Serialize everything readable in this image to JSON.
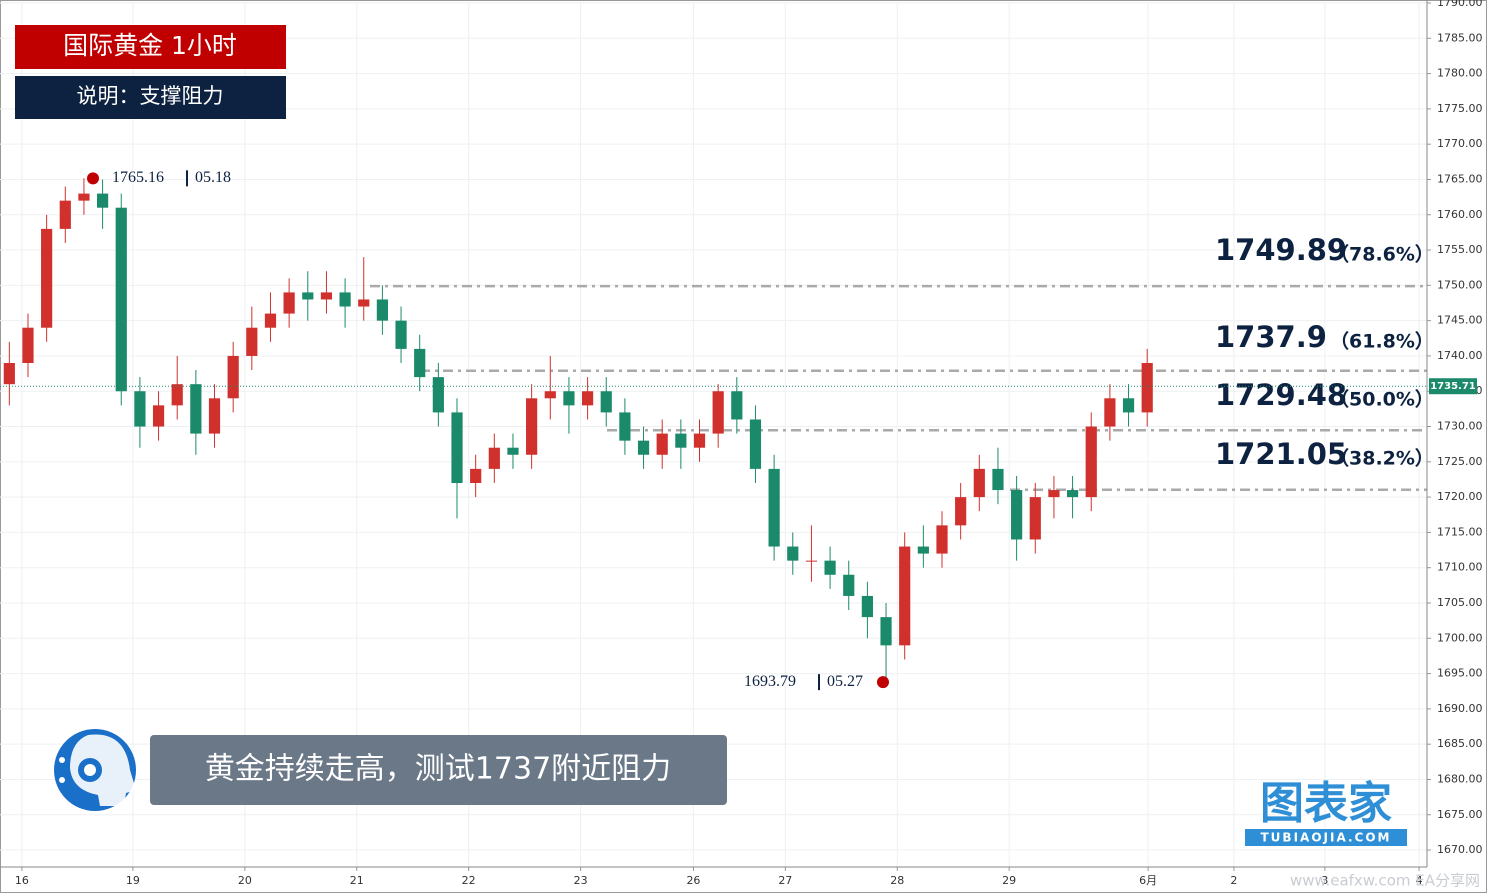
{
  "chart_data": {
    "type": "candlestick",
    "title": "国际黄金  1小时",
    "subtitle": "说明：支撑阻力",
    "caption": "黄金持续走高，测试1737附近阻力",
    "logo": {
      "text": "图表家",
      "url": "TUBIAOJIA.COM"
    },
    "watermark": "www.eafxw.com  EA分享网",
    "up_color": "#d0312d",
    "down_color": "#1b8a6b",
    "xlim": [
      0,
      306
    ],
    "xticks": [
      {
        "value": 4.7,
        "label": "16"
      },
      {
        "value": 28.5,
        "label": "19"
      },
      {
        "value": 52.5,
        "label": "20"
      },
      {
        "value": 76.5,
        "label": "21"
      },
      {
        "value": 100.5,
        "label": "22"
      },
      {
        "value": 124.5,
        "label": "23"
      },
      {
        "value": 148.7,
        "label": "26"
      },
      {
        "value": 168.4,
        "label": "27"
      },
      {
        "value": 192.4,
        "label": "28"
      },
      {
        "value": 216.4,
        "label": "29"
      },
      {
        "value": 246.2,
        "label": "6月"
      },
      {
        "value": 264.6,
        "label": "2"
      },
      {
        "value": 284.1,
        "label": "3"
      },
      {
        "value": 304.3,
        "label": "4"
      }
    ],
    "ylim": [
      1667.6,
      1790
    ],
    "yticks": [
      {
        "value": 1670,
        "label": "1670.00"
      },
      {
        "value": 1675,
        "label": "1675.00"
      },
      {
        "value": 1680,
        "label": "1680.00"
      },
      {
        "value": 1685,
        "label": "1685.00"
      },
      {
        "value": 1690,
        "label": "1690.00"
      },
      {
        "value": 1695,
        "label": "1695.00"
      },
      {
        "value": 1700,
        "label": "1700.00"
      },
      {
        "value": 1705,
        "label": "1705.00"
      },
      {
        "value": 1710,
        "label": "1710.00"
      },
      {
        "value": 1715,
        "label": "1715.00"
      },
      {
        "value": 1720,
        "label": "1720.00"
      },
      {
        "value": 1725,
        "label": "1725.00"
      },
      {
        "value": 1730,
        "label": "1730.00"
      },
      {
        "value": 1735,
        "label": "1735.00"
      },
      {
        "value": 1740,
        "label": "1740.00"
      },
      {
        "value": 1745,
        "label": "1745.00"
      },
      {
        "value": 1750,
        "label": "1750.00"
      },
      {
        "value": 1755,
        "label": "1755.00"
      },
      {
        "value": 1760,
        "label": "1760.00"
      },
      {
        "value": 1765,
        "label": "1765.00"
      },
      {
        "value": 1770,
        "label": "1770.00"
      },
      {
        "value": 1775,
        "label": "1775.00"
      },
      {
        "value": 1780,
        "label": "1780.00"
      },
      {
        "value": 1785,
        "label": "1785.00"
      },
      {
        "value": 1790,
        "label": "1790.00"
      }
    ],
    "grid": true,
    "x": [
      2,
      6,
      10,
      14,
      18,
      22,
      26,
      30,
      34,
      38,
      42,
      46,
      50,
      54,
      58,
      62,
      66,
      70,
      74,
      78,
      82,
      86,
      90,
      94,
      98,
      102,
      106,
      110,
      114,
      118,
      122,
      126,
      130,
      134,
      138,
      142,
      146,
      150,
      154,
      158,
      162,
      166,
      170,
      174,
      178,
      182,
      186,
      190,
      194,
      198,
      202,
      206,
      210,
      214,
      218,
      222,
      226,
      230,
      234,
      238,
      242,
      246
    ],
    "open": [
      1736,
      1739,
      1744,
      1758,
      1762,
      1763,
      1761,
      1735,
      1730,
      1733,
      1736,
      1729,
      1734,
      1740,
      1744,
      1746,
      1749,
      1748,
      1749,
      1747,
      1748,
      1745,
      1741,
      1737,
      1732,
      1722,
      1724,
      1727,
      1726,
      1734,
      1735,
      1733,
      1735,
      1732,
      1728,
      1726,
      1729,
      1727,
      1729,
      1735,
      1731,
      1724,
      1713,
      1711,
      1711,
      1709,
      1706,
      1703,
      1699,
      1713,
      1712,
      1716,
      1720,
      1724,
      1721,
      1714,
      1720,
      1721,
      1720,
      1730,
      1734,
      1732
    ],
    "high": [
      1742,
      1746,
      1760,
      1764,
      1765.16,
      1765,
      1763,
      1737,
      1735,
      1740,
      1738,
      1736,
      1742,
      1747,
      1749,
      1751,
      1752,
      1752,
      1751,
      1754,
      1750,
      1747,
      1743,
      1739,
      1734,
      1726,
      1729,
      1729,
      1736,
      1740,
      1737,
      1737,
      1737,
      1734,
      1730,
      1731,
      1731,
      1731,
      1736,
      1737,
      1733,
      1726,
      1715,
      1716,
      1713,
      1711,
      1708,
      1705,
      1715,
      1716,
      1718,
      1722,
      1726,
      1727,
      1723,
      1722,
      1723,
      1723,
      1732,
      1736,
      1736,
      1741
    ],
    "low": [
      1733,
      1737,
      1742,
      1756,
      1760,
      1758,
      1733,
      1727,
      1728,
      1731,
      1726,
      1727,
      1732,
      1738,
      1742,
      1744,
      1745,
      1746,
      1744,
      1745,
      1743,
      1739,
      1735,
      1730,
      1717,
      1720,
      1722,
      1724,
      1724,
      1731,
      1729,
      1731,
      1730,
      1726,
      1724,
      1724,
      1724,
      1725,
      1727,
      1729,
      1722,
      1711,
      1709,
      1708,
      1707,
      1704,
      1700,
      1693.79,
      1697,
      1710,
      1710,
      1714,
      1718,
      1719,
      1711,
      1712,
      1717,
      1717,
      1718,
      1728,
      1730,
      1730
    ],
    "close": [
      1739,
      1744,
      1758,
      1762,
      1763,
      1761,
      1735,
      1730,
      1733,
      1736,
      1729,
      1734,
      1740,
      1744,
      1746,
      1749,
      1748,
      1749,
      1747,
      1748,
      1745,
      1741,
      1737,
      1732,
      1722,
      1724,
      1727,
      1726,
      1734,
      1735,
      1733,
      1735,
      1732,
      1728,
      1726,
      1729,
      1727,
      1729,
      1735,
      1731,
      1724,
      1713,
      1711,
      1711,
      1709,
      1706,
      1703,
      1699,
      1713,
      1712,
      1716,
      1720,
      1724,
      1721,
      1714,
      1720,
      1721,
      1720,
      1730,
      1734,
      1732,
      1739
    ],
    "current": {
      "value": 1735.71,
      "color": "#1b8a6b"
    },
    "high_note": {
      "value": 1765.16,
      "date": "05.18"
    },
    "low_note": {
      "value": 1693.79,
      "date": "05.27"
    },
    "levels": [
      {
        "value": 1749.89,
        "label": "（78.6%）"
      },
      {
        "value": 1737.9,
        "label": "（61.8%）"
      },
      {
        "value": 1729.48,
        "label": "（50.0%）"
      },
      {
        "value": 1721.05,
        "label": "（38.2%）"
      }
    ]
  }
}
